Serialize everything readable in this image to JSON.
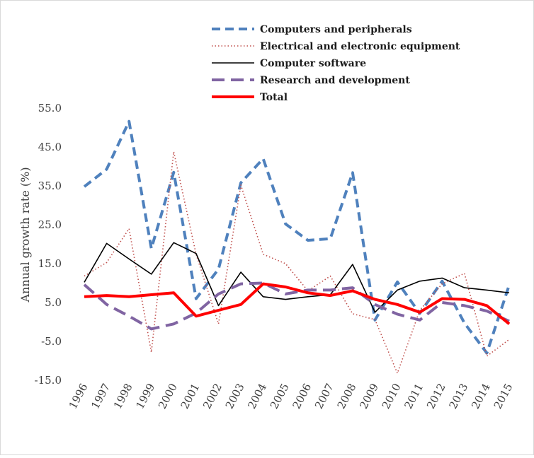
{
  "chart_data": {
    "type": "line",
    "title": "",
    "xlabel": "",
    "ylabel": "Annual growth rate (%)",
    "x": [
      "1996",
      "1997",
      "1998",
      "1999",
      "2000",
      "2001",
      "2002",
      "2003",
      "2004",
      "2005",
      "2006",
      "2007",
      "2008",
      "2009",
      "2010",
      "2011",
      "2012",
      "2013",
      "2014",
      "2015"
    ],
    "ylim": [
      -15,
      55
    ],
    "yticks": [
      "-15.0",
      "-5.0",
      "5.0",
      "15.0",
      "25.0",
      "35.0",
      "45.0",
      "55.0"
    ],
    "grid": false,
    "legend": "top",
    "series": [
      {
        "name": "Computers and peripherals",
        "color": "#4f81bd",
        "style": "dashed-thick",
        "values": [
          34.8,
          39.3,
          51.6,
          18.9,
          38.5,
          6.0,
          13.6,
          35.8,
          42.0,
          25.2,
          21.0,
          21.4,
          38.4,
          0.5,
          10.3,
          2.2,
          10.5,
          -0.3,
          -8.0,
          9.5
        ]
      },
      {
        "name": "Electrical and electronic equipment",
        "color": "#c0504d",
        "style": "dotted",
        "values": [
          11.8,
          15.3,
          24.0,
          -7.8,
          43.8,
          17.4,
          -0.5,
          35.2,
          17.4,
          15.0,
          8.0,
          11.8,
          2.1,
          0.6,
          -13.2,
          3.0,
          9.8,
          12.5,
          -8.8,
          -4.5
        ]
      },
      {
        "name": "Computer software",
        "color": "#000000",
        "style": "solid-thin",
        "values": [
          10.2,
          20.2,
          16.2,
          12.3,
          20.4,
          17.6,
          4.2,
          12.8,
          6.5,
          5.8,
          6.5,
          7.0,
          14.8,
          2.5,
          8.2,
          10.5,
          11.3,
          8.8,
          8.2,
          7.5
        ]
      },
      {
        "name": "Research and development",
        "color": "#8064a2",
        "style": "long-dash",
        "values": [
          9.6,
          4.5,
          1.5,
          -1.8,
          -0.5,
          2.3,
          7.2,
          9.8,
          10.0,
          7.2,
          8.2,
          8.2,
          8.8,
          4.5,
          2.0,
          0.5,
          5.0,
          4.2,
          2.8,
          0.2
        ]
      },
      {
        "name": "Total",
        "color": "#ff0000",
        "style": "solid-thick",
        "values": [
          6.5,
          6.8,
          6.5,
          7.0,
          7.5,
          1.5,
          3.0,
          4.5,
          9.8,
          9.0,
          7.5,
          6.8,
          8.0,
          5.8,
          4.5,
          2.5,
          6.0,
          5.8,
          4.2,
          -0.5
        ]
      }
    ]
  }
}
